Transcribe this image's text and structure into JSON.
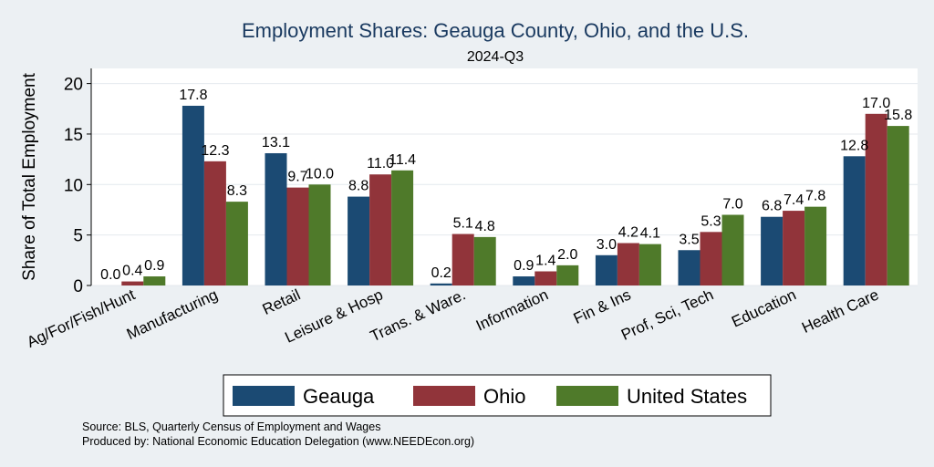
{
  "chart_data": {
    "type": "bar",
    "title": "Employment Shares: Geauga County, Ohio, and the U.S.",
    "subtitle": "2024-Q3",
    "ylabel": "Share of Total Employment",
    "xlabel": "",
    "ylim": [
      0,
      21.5
    ],
    "yticks": [
      0,
      5,
      10,
      15,
      20
    ],
    "grid": true,
    "legend_position": "bottom",
    "categories": [
      "Ag/For/Fish/Hunt",
      "Manufacturing",
      "Retail",
      "Leisure & Hosp",
      "Trans. & Ware.",
      "Information",
      "Fin & Ins",
      "Prof, Sci, Tech",
      "Education",
      "Health Care"
    ],
    "series": [
      {
        "name": "Geauga",
        "color": "#1b4a73",
        "values": [
          0.0,
          17.8,
          13.1,
          8.8,
          0.2,
          0.9,
          3.0,
          3.5,
          6.8,
          12.8
        ],
        "labels": [
          "0.0",
          "17.8",
          "13.1",
          "8.8",
          "0.2",
          "0.9",
          "3.0",
          "3.5",
          "6.8",
          "12.8"
        ]
      },
      {
        "name": "Ohio",
        "color": "#91343a",
        "values": [
          0.4,
          12.3,
          9.7,
          11.0,
          5.1,
          1.4,
          4.2,
          5.3,
          7.4,
          17.0
        ],
        "labels": [
          "0.4",
          "12.3",
          "9.7",
          "11.0",
          "5.1",
          "1.4",
          "4.2",
          "5.3",
          "7.4",
          "17.0"
        ]
      },
      {
        "name": "United States",
        "color": "#4f7a2a",
        "values": [
          0.9,
          8.3,
          10.0,
          11.4,
          4.8,
          2.0,
          4.1,
          7.0,
          7.8,
          15.8
        ],
        "labels": [
          "0.9",
          "8.3",
          "10.0",
          "11.4",
          "4.8",
          "2.0",
          "4.1",
          "7.0",
          "7.8",
          "15.8"
        ]
      }
    ]
  },
  "notes": {
    "source": "Source: BLS, Quarterly Census of Employment and Wages",
    "produced": "Produced by: National Economic Education Delegation (www.NEEDEcon.org)"
  }
}
